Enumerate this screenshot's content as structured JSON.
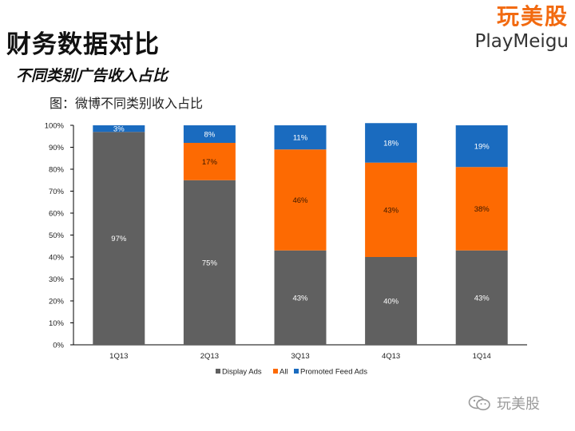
{
  "slide": {
    "title": "财务数据对比",
    "subtitle": "不同类别广告收入占比",
    "caption": "图：微博不同类别收入占比",
    "logo_cn": "玩美股",
    "logo_en": "PlayMeigu",
    "watermark": "玩美股"
  },
  "colors": {
    "display": "#606060",
    "all": "#fd6a02",
    "promoted": "#1a6bbf",
    "logo": "#f26a10"
  },
  "chart_data": {
    "type": "bar",
    "stacked": true,
    "title": "",
    "xlabel": "",
    "ylabel": "",
    "ylim": [
      0,
      100
    ],
    "yticks": [
      "0%",
      "10%",
      "20%",
      "30%",
      "40%",
      "50%",
      "60%",
      "70%",
      "80%",
      "90%",
      "100%"
    ],
    "categories": [
      "1Q13",
      "2Q13",
      "3Q13",
      "4Q13",
      "1Q14"
    ],
    "series": [
      {
        "name": "Display Ads",
        "color": "#606060",
        "values": [
          97,
          75,
          43,
          40,
          43
        ],
        "labels": [
          "97%",
          "75%",
          "43%",
          "40%",
          "43%"
        ]
      },
      {
        "name": "All",
        "color": "#fd6a02",
        "values": [
          0,
          17,
          46,
          43,
          38
        ],
        "labels": [
          "",
          "17%",
          "46%",
          "43%",
          "38%"
        ]
      },
      {
        "name": "Promoted Feed Ads",
        "color": "#1a6bbf",
        "values": [
          3,
          8,
          11,
          18,
          19
        ],
        "labels": [
          "3%",
          "8%",
          "11%",
          "18%",
          "19%"
        ]
      }
    ],
    "legend_position": "bottom",
    "grid": false
  }
}
